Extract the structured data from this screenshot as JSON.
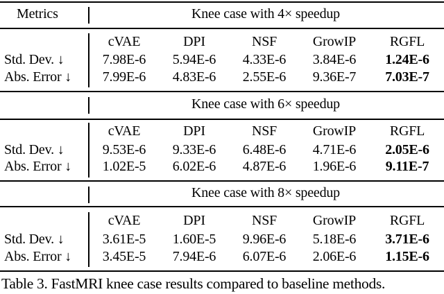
{
  "header": {
    "metrics_label": "Metrics"
  },
  "methods": [
    "cVAE",
    "DPI",
    "NSF",
    "GrowIP",
    "RGFL"
  ],
  "sections": [
    {
      "title": "Knee case with 4× speedup",
      "rows": [
        {
          "label": "Std. Dev. ↓",
          "values": [
            "7.98E-6",
            "5.94E-6",
            "4.33E-6",
            "3.84E-6",
            "1.24E-6"
          ]
        },
        {
          "label": "Abs. Error ↓",
          "values": [
            "7.99E-6",
            "4.83E-6",
            "2.55E-6",
            "9.36E-7",
            "7.03E-7"
          ]
        }
      ]
    },
    {
      "title": "Knee case with 6× speedup",
      "rows": [
        {
          "label": "Std. Dev. ↓",
          "values": [
            "9.53E-6",
            "9.33E-6",
            "6.48E-6",
            "4.71E-6",
            "2.05E-6"
          ]
        },
        {
          "label": "Abs. Error ↓",
          "values": [
            "1.02E-5",
            "6.02E-6",
            "4.87E-6",
            "1.96E-6",
            "9.11E-7"
          ]
        }
      ]
    },
    {
      "title": "Knee case with 8× speedup",
      "rows": [
        {
          "label": "Std. Dev. ↓",
          "values": [
            "3.61E-5",
            "1.60E-5",
            "9.96E-6",
            "5.18E-6",
            "3.71E-6"
          ]
        },
        {
          "label": "Abs. Error ↓",
          "values": [
            "3.45E-5",
            "7.94E-6",
            "6.07E-6",
            "2.06E-6",
            "1.15E-6"
          ]
        }
      ]
    }
  ],
  "caption": "Table 3. FastMRI knee case results compared to baseline methods."
}
